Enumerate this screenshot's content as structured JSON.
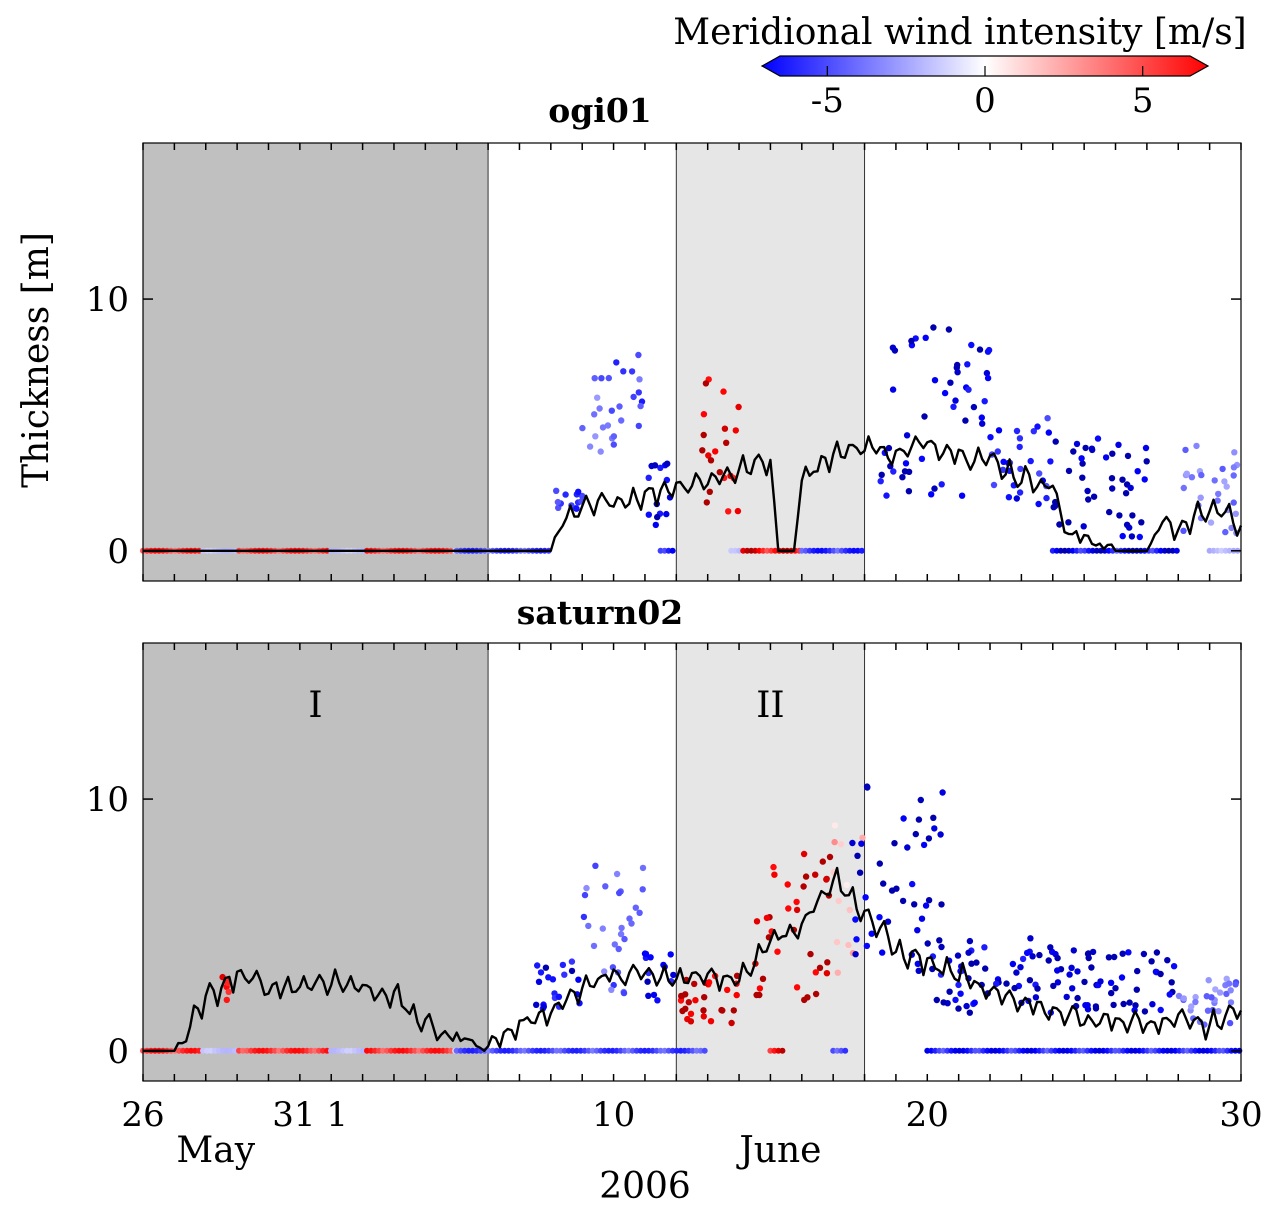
{
  "colorbar": {
    "label": "Meridional wind intensity [m/s]",
    "min": -6.5,
    "max": 6.5,
    "ticks": [
      -5,
      0,
      5
    ],
    "tick_labels": [
      "-5",
      "0",
      "5"
    ],
    "colors": {
      "negative": "#0000ff",
      "zero": "#ffffff",
      "positive": "#ff0000"
    }
  },
  "chart_data": [
    {
      "type": "scatter",
      "title": "ogi01",
      "ylabel": "Thickness [m]",
      "ylim": [
        -1.2,
        16.2
      ],
      "yticks": [
        0,
        10
      ],
      "ytick_labels": [
        "0",
        "10"
      ],
      "xlim": [
        "2006-05-26",
        "2006-06-30"
      ],
      "shaded_periods": [
        {
          "start": "2006-05-26",
          "end": "2006-06-06",
          "color": "#c0c0c0",
          "label": ""
        },
        {
          "start": "2006-06-12",
          "end": "2006-06-18",
          "color": "#e6e6e6",
          "label": ""
        }
      ],
      "line": [
        [
          "2006-05-26",
          0
        ],
        [
          "2006-06-08",
          0
        ],
        [
          "2006-06-08 06:00",
          1.0
        ],
        [
          "2006-06-09",
          1.6
        ],
        [
          "2006-06-10",
          2.0
        ],
        [
          "2006-06-11",
          2.2
        ],
        [
          "2006-06-12",
          2.6
        ],
        [
          "2006-06-13",
          2.8
        ],
        [
          "2006-06-14",
          3.2
        ],
        [
          "2006-06-15",
          3.6
        ],
        [
          "2006-06-15 06:00",
          0
        ],
        [
          "2006-06-15 18:00",
          0
        ],
        [
          "2006-06-16",
          3.0
        ],
        [
          "2006-06-17",
          3.8
        ],
        [
          "2006-06-18",
          4.2
        ],
        [
          "2006-06-19",
          3.8
        ],
        [
          "2006-06-20",
          4.3
        ],
        [
          "2006-06-21",
          3.9
        ],
        [
          "2006-06-22",
          3.6
        ],
        [
          "2006-06-23",
          2.9
        ],
        [
          "2006-06-24",
          2.6
        ],
        [
          "2006-06-24 12:00",
          0.5
        ],
        [
          "2006-06-25",
          0.6
        ],
        [
          "2006-06-26",
          0
        ],
        [
          "2006-06-27",
          0
        ],
        [
          "2006-06-27 12:00",
          1.2
        ],
        [
          "2006-06-28",
          0.8
        ],
        [
          "2006-06-29",
          1.8
        ],
        [
          "2006-06-30",
          1.0
        ]
      ],
      "point_clusters": [
        {
          "x": [
            "2006-06-08",
            "2006-06-09"
          ],
          "y": [
            1.5,
            2.5
          ],
          "wind": -4.5
        },
        {
          "x": [
            "2006-06-09",
            "2006-06-10"
          ],
          "y": [
            3.5,
            8.3
          ],
          "wind": -3.0
        },
        {
          "x": [
            "2006-06-10",
            "2006-06-11"
          ],
          "y": [
            3.0,
            7.8
          ],
          "wind": -4.0
        },
        {
          "x": [
            "2006-06-11",
            "2006-06-12"
          ],
          "y": [
            1.0,
            4.5
          ],
          "wind": -6.0
        },
        {
          "x": [
            "2006-06-12 12:00",
            "2006-06-14"
          ],
          "y": [
            1.4,
            6.9
          ],
          "wind": 6.0
        },
        {
          "x": [
            "2006-06-18 12:00",
            "2006-06-22"
          ],
          "y": [
            2.0,
            9.5
          ],
          "wind": -6.0
        },
        {
          "x": [
            "2006-06-22",
            "2006-06-24"
          ],
          "y": [
            1.8,
            5.4
          ],
          "wind": -5.0
        },
        {
          "x": [
            "2006-06-24",
            "2006-06-27"
          ],
          "y": [
            0.5,
            4.5
          ],
          "wind": -6.5
        },
        {
          "x": [
            "2006-06-28",
            "2006-06-30"
          ],
          "y": [
            0.5,
            4.3
          ],
          "wind": -3.0
        }
      ],
      "baseline": [
        {
          "start": "2006-05-26",
          "end": "2006-06-05",
          "wind": 5.5
        },
        {
          "start": "2006-06-05",
          "end": "2006-06-08",
          "wind": -5.0
        },
        {
          "start": "2006-06-11 12:00",
          "end": "2006-06-12",
          "wind": -6.5
        },
        {
          "start": "2006-06-13 18:00",
          "end": "2006-06-16",
          "wind": 6.5
        },
        {
          "start": "2006-06-16",
          "end": "2006-06-18",
          "wind": -5.5
        },
        {
          "start": "2006-06-24",
          "end": "2006-06-28",
          "wind": -6.5
        },
        {
          "start": "2006-06-29",
          "end": "2006-06-30",
          "wind": -2.0
        }
      ]
    },
    {
      "type": "scatter",
      "title": "saturn02",
      "ylabel": "",
      "ylim": [
        -1.2,
        16.2
      ],
      "yticks": [
        0,
        10
      ],
      "ytick_labels": [
        "0",
        "10"
      ],
      "xlim": [
        "2006-05-26",
        "2006-06-30"
      ],
      "shaded_periods": [
        {
          "start": "2006-05-26",
          "end": "2006-06-06",
          "color": "#c0c0c0",
          "label": "I"
        },
        {
          "start": "2006-06-12",
          "end": "2006-06-18",
          "color": "#e6e6e6",
          "label": "II"
        }
      ],
      "line": [
        [
          "2006-05-26",
          0
        ],
        [
          "2006-05-27",
          0
        ],
        [
          "2006-05-28",
          2.0
        ],
        [
          "2006-05-29",
          3.0
        ],
        [
          "2006-05-30",
          2.5
        ],
        [
          "2006-05-31",
          2.6
        ],
        [
          "2006-06-01",
          2.8
        ],
        [
          "2006-06-02",
          2.5
        ],
        [
          "2006-06-03",
          2.2
        ],
        [
          "2006-06-04",
          1.0
        ],
        [
          "2006-06-05",
          0.5
        ],
        [
          "2006-06-06",
          0.2
        ],
        [
          "2006-06-07",
          1.0
        ],
        [
          "2006-06-08",
          1.6
        ],
        [
          "2006-06-09",
          2.5
        ],
        [
          "2006-06-10",
          3.0
        ],
        [
          "2006-06-11",
          3.0
        ],
        [
          "2006-06-12",
          2.8
        ],
        [
          "2006-06-13",
          3.0
        ],
        [
          "2006-06-14",
          2.8
        ],
        [
          "2006-06-15",
          4.5
        ],
        [
          "2006-06-16",
          5.0
        ],
        [
          "2006-06-17",
          6.9
        ],
        [
          "2006-06-18",
          5.5
        ],
        [
          "2006-06-19",
          4.0
        ],
        [
          "2006-06-20",
          3.5
        ],
        [
          "2006-06-21",
          3.0
        ],
        [
          "2006-06-22",
          2.2
        ],
        [
          "2006-06-23",
          2.0
        ],
        [
          "2006-06-24",
          1.6
        ],
        [
          "2006-06-25",
          1.3
        ],
        [
          "2006-06-26",
          1.2
        ],
        [
          "2006-06-27",
          1.0
        ],
        [
          "2006-06-28",
          1.2
        ],
        [
          "2006-06-29",
          1.0
        ],
        [
          "2006-06-30",
          1.6
        ]
      ],
      "point_clusters": [
        {
          "x": [
            "2006-05-28 12:00",
            "2006-05-28 18:00"
          ],
          "y": [
            2.0,
            3.2
          ],
          "wind": 5.0
        },
        {
          "x": [
            "2006-06-07 12:00",
            "2006-06-09"
          ],
          "y": [
            1.6,
            3.6
          ],
          "wind": -5.5
        },
        {
          "x": [
            "2006-06-09",
            "2006-06-11"
          ],
          "y": [
            2.0,
            7.5
          ],
          "wind": -3.5
        },
        {
          "x": [
            "2006-06-11",
            "2006-06-12"
          ],
          "y": [
            2.0,
            4.0
          ],
          "wind": -5.5
        },
        {
          "x": [
            "2006-06-12",
            "2006-06-14"
          ],
          "y": [
            1.0,
            3.1
          ],
          "wind": 6.0
        },
        {
          "x": [
            "2006-06-14 12:00",
            "2006-06-17"
          ],
          "y": [
            2.0,
            8.0
          ],
          "wind": 6.5
        },
        {
          "x": [
            "2006-06-17",
            "2006-06-18"
          ],
          "y": [
            3.0,
            9.3
          ],
          "wind": 1.5
        },
        {
          "x": [
            "2006-06-17 12:00",
            "2006-06-20 12:00"
          ],
          "y": [
            3.0,
            10.5
          ],
          "wind": -6.5
        },
        {
          "x": [
            "2006-06-20",
            "2006-06-24"
          ],
          "y": [
            1.5,
            4.5
          ],
          "wind": -6.0
        },
        {
          "x": [
            "2006-06-24",
            "2006-06-28"
          ],
          "y": [
            1.5,
            4.0
          ],
          "wind": -6.5
        },
        {
          "x": [
            "2006-06-28",
            "2006-06-30"
          ],
          "y": [
            1.0,
            3.0
          ],
          "wind": -3.0
        }
      ],
      "baseline": [
        {
          "start": "2006-05-26",
          "end": "2006-06-05",
          "wind": 5.5
        },
        {
          "start": "2006-06-05",
          "end": "2006-06-13",
          "wind": -5.0
        },
        {
          "start": "2006-06-15",
          "end": "2006-06-15 12:00",
          "wind": 6.5
        },
        {
          "start": "2006-06-17",
          "end": "2006-06-17 12:00",
          "wind": -5.5
        },
        {
          "start": "2006-06-20",
          "end": "2006-06-30",
          "wind": -6.0
        }
      ]
    }
  ],
  "xaxis": {
    "tick_labels": [
      {
        "date": "2006-05-26",
        "label": "26"
      },
      {
        "date": "2006-05-31",
        "label": "31"
      },
      {
        "date": "2006-06-01",
        "label": "1"
      },
      {
        "date": "2006-06-10",
        "label": "10"
      },
      {
        "date": "2006-06-20",
        "label": "20"
      },
      {
        "date": "2006-06-30",
        "label": "30"
      }
    ],
    "month_labels": [
      {
        "date": "2006-05-28",
        "label": "May"
      },
      {
        "date": "2006-06-15",
        "label": "June"
      }
    ],
    "year_label": "2006"
  }
}
